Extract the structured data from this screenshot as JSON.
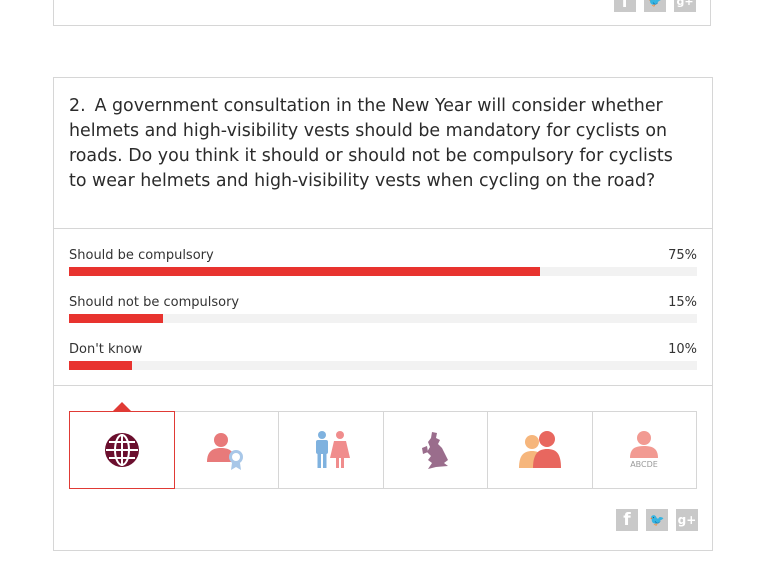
{
  "previous_card": {
    "share": [
      {
        "icon": "facebook-icon",
        "glyph": "f"
      },
      {
        "icon": "twitter-icon",
        "glyph": "🐦"
      },
      {
        "icon": "google-plus-icon",
        "glyph": "g+"
      }
    ]
  },
  "question": {
    "number": "2.",
    "text": "A government consultation in the New Year will consider whether helmets and high-visibility vests should be mandatory for cyclists on roads. Do you think it should or should not be compulsory for cyclists to wear helmets and high-visibility vests when cycling on the road?"
  },
  "results": [
    {
      "label": "Should be compulsory",
      "percent_label": "75%",
      "value": 75
    },
    {
      "label": "Should not be compulsory",
      "percent_label": "15%",
      "value": 15
    },
    {
      "label": "Don't know",
      "percent_label": "10%",
      "value": 10
    }
  ],
  "filter_tabs": [
    {
      "icon": "globe-icon",
      "active": true
    },
    {
      "icon": "person-award-icon",
      "active": false
    },
    {
      "icon": "male-female-icon",
      "active": false
    },
    {
      "icon": "uk-map-icon",
      "active": false
    },
    {
      "icon": "two-people-icon",
      "active": false
    },
    {
      "icon": "person-grade-icon",
      "caption": "ABCDE",
      "active": false
    }
  ],
  "share": [
    {
      "icon": "facebook-icon",
      "glyph": "f"
    },
    {
      "icon": "twitter-icon",
      "glyph": "🐦"
    },
    {
      "icon": "google-plus-icon",
      "glyph": "g+"
    }
  ],
  "colors": {
    "accent": "#e8332f",
    "globe": "#6b0f2e",
    "share": "#c9c9c9",
    "track": "#f2f2f2",
    "border": "#d6d6d6"
  }
}
